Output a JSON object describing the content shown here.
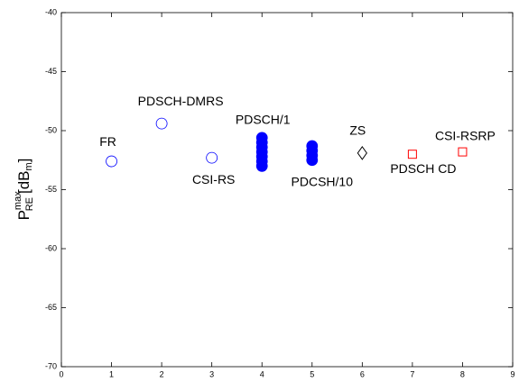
{
  "chart_data": {
    "type": "scatter",
    "ylabel": [
      "P",
      "max",
      "RE",
      "[dB",
      "m",
      "]"
    ],
    "xlim": [
      0,
      9
    ],
    "xticks": [
      0,
      1,
      2,
      3,
      4,
      5,
      6,
      7,
      8,
      9
    ],
    "ylim": [
      -70,
      -40
    ],
    "yticks": [
      -70,
      -65,
      -60,
      -55,
      -50,
      -45,
      -40
    ],
    "series": [
      {
        "name": "FR",
        "color": "#0000ff",
        "marker": "circle",
        "filled": false,
        "x": [
          1
        ],
        "values": [
          -52.6
        ]
      },
      {
        "name": "PDSCH-DMRS",
        "color": "#0000ff",
        "marker": "circle",
        "filled": false,
        "x": [
          2
        ],
        "values": [
          -49.4
        ]
      },
      {
        "name": "CSI-RS",
        "color": "#0000ff",
        "marker": "circle",
        "filled": false,
        "x": [
          3
        ],
        "values": [
          -52.3
        ]
      },
      {
        "name": "PDSCH/1",
        "color": "#0000ff",
        "marker": "circle",
        "filled": true,
        "x": [
          4,
          4,
          4,
          4,
          4,
          4,
          4
        ],
        "values": [
          -50.6,
          -51.0,
          -51.4,
          -51.8,
          -52.2,
          -52.6,
          -53.0
        ]
      },
      {
        "name": "PDCSH/10",
        "color": "#0000ff",
        "marker": "circle",
        "filled": true,
        "x": [
          5,
          5,
          5,
          5
        ],
        "values": [
          -51.3,
          -51.7,
          -52.1,
          -52.5
        ]
      },
      {
        "name": "ZS",
        "color": "#000000",
        "marker": "diamond",
        "filled": false,
        "x": [
          6
        ],
        "values": [
          -51.9
        ]
      },
      {
        "name": "PDSCH CD",
        "color": "#ff0000",
        "marker": "square",
        "filled": false,
        "x": [
          7
        ],
        "values": [
          -52.0
        ]
      },
      {
        "name": "CSI-RSRP",
        "color": "#ff0000",
        "marker": "square",
        "filled": false,
        "x": [
          8
        ],
        "values": [
          -51.8
        ]
      }
    ]
  }
}
